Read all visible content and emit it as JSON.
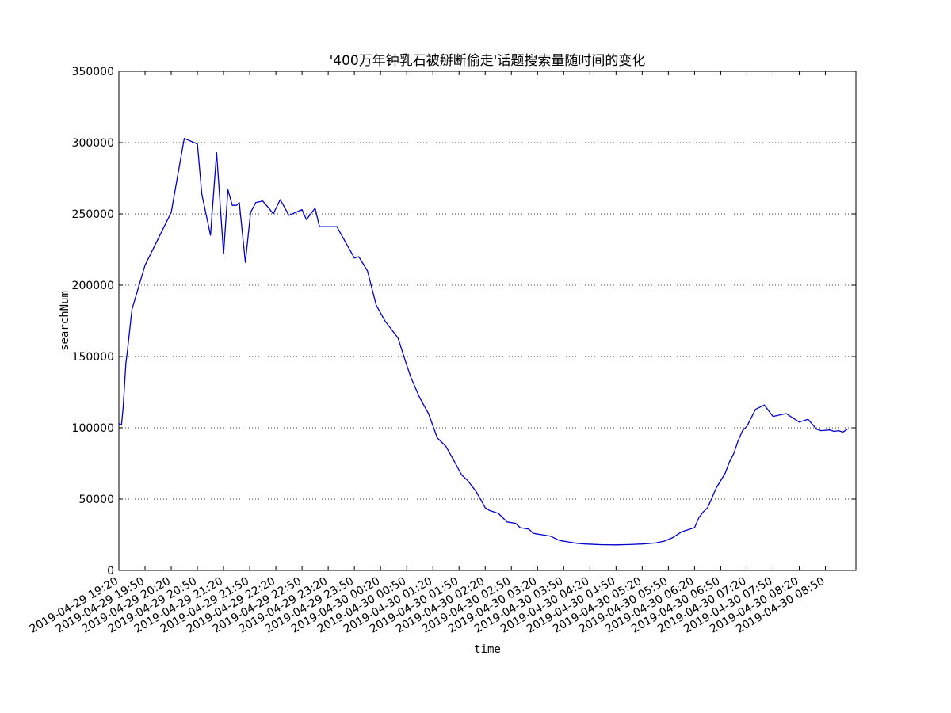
{
  "chart_data": {
    "type": "line",
    "title": "'400万年钟乳石被掰断偷走'话题搜索量随时间的变化",
    "xlabel": "time",
    "ylabel": "searchNum",
    "ylim": [
      0,
      350000
    ],
    "yticks": [
      0,
      50000,
      100000,
      150000,
      200000,
      250000,
      300000,
      350000
    ],
    "ytick_labels": [
      "0",
      "50000",
      "100000",
      "150000",
      "200000",
      "250000",
      "300000",
      "350000"
    ],
    "xlim": [
      "2019-04-29 19:20",
      "2019-04-30 09:25"
    ],
    "xtick_labels": [
      "2019-04-29 19:20",
      "2019-04-29 19:50",
      "2019-04-29 20:20",
      "2019-04-29 20:50",
      "2019-04-29 21:20",
      "2019-04-29 21:50",
      "2019-04-29 22:20",
      "2019-04-29 22:50",
      "2019-04-29 23:20",
      "2019-04-29 23:50",
      "2019-04-30 00:20",
      "2019-04-30 00:50",
      "2019-04-30 01:20",
      "2019-04-30 01:50",
      "2019-04-30 02:20",
      "2019-04-30 02:50",
      "2019-04-30 03:20",
      "2019-04-30 03:50",
      "2019-04-30 04:20",
      "2019-04-30 04:50",
      "2019-04-30 05:20",
      "2019-04-30 05:50",
      "2019-04-30 06:20",
      "2019-04-30 06:50",
      "2019-04-30 07:20",
      "2019-04-30 07:50",
      "2019-04-30 08:20",
      "2019-04-30 08:50"
    ],
    "grid": "y-dotted",
    "line_color": "#0000cc",
    "series": [
      {
        "x": [
          "2019-04-29 19:20",
          "2019-04-29 19:23",
          "2019-04-29 19:25",
          "2019-04-29 19:28",
          "2019-04-29 19:30",
          "2019-04-29 19:35",
          "2019-04-29 19:50",
          "2019-04-29 20:20",
          "2019-04-29 20:35",
          "2019-04-29 20:50",
          "2019-04-29 20:55",
          "2019-04-29 21:05",
          "2019-04-29 21:12",
          "2019-04-29 21:20",
          "2019-04-29 21:25",
          "2019-04-29 21:30",
          "2019-04-29 21:35",
          "2019-04-29 21:38",
          "2019-04-29 21:45",
          "2019-04-29 21:51",
          "2019-04-29 21:57",
          "2019-04-29 22:05",
          "2019-04-29 22:12",
          "2019-04-29 22:17",
          "2019-04-29 22:25",
          "2019-04-29 22:35",
          "2019-04-29 22:50",
          "2019-04-29 22:55",
          "2019-04-29 23:05",
          "2019-04-29 23:10",
          "2019-04-29 23:20",
          "2019-04-29 23:30",
          "2019-04-29 23:50",
          "2019-04-29 23:55",
          "2019-04-30 00:05",
          "2019-04-30 00:15",
          "2019-04-30 00:25",
          "2019-04-30 00:40",
          "2019-04-30 00:50",
          "2019-04-30 00:55",
          "2019-04-30 01:05",
          "2019-04-30 01:15",
          "2019-04-30 01:25",
          "2019-04-30 01:35",
          "2019-04-30 01:45",
          "2019-04-30 01:53",
          "2019-04-30 02:00",
          "2019-04-30 02:10",
          "2019-04-30 02:20",
          "2019-04-30 02:25",
          "2019-04-30 02:35",
          "2019-04-30 02:45",
          "2019-04-30 02:55",
          "2019-04-30 03:00",
          "2019-04-30 03:10",
          "2019-04-30 03:15",
          "2019-04-30 03:25",
          "2019-04-30 03:35",
          "2019-04-30 03:45",
          "2019-04-30 03:55",
          "2019-04-30 04:05",
          "2019-04-30 04:15",
          "2019-04-30 04:25",
          "2019-04-30 04:35",
          "2019-04-30 04:50",
          "2019-04-30 05:05",
          "2019-04-30 05:20",
          "2019-04-30 05:35",
          "2019-04-30 05:45",
          "2019-04-30 05:55",
          "2019-04-30 06:05",
          "2019-04-30 06:20",
          "2019-04-30 06:25",
          "2019-04-30 06:30",
          "2019-04-30 06:35",
          "2019-04-30 06:40",
          "2019-04-30 06:45",
          "2019-04-30 06:55",
          "2019-04-30 07:00",
          "2019-04-30 07:05",
          "2019-04-30 07:10",
          "2019-04-30 07:15",
          "2019-04-30 07:20",
          "2019-04-30 07:30",
          "2019-04-30 07:40",
          "2019-04-30 07:50",
          "2019-04-30 08:05",
          "2019-04-30 08:15",
          "2019-04-30 08:20",
          "2019-04-30 08:30",
          "2019-04-30 08:40",
          "2019-04-30 08:45",
          "2019-04-30 08:55",
          "2019-04-30 09:00",
          "2019-04-30 09:05",
          "2019-04-30 09:10",
          "2019-04-30 09:15"
        ],
        "values": [
          103000,
          102000,
          115000,
          145000,
          155000,
          183000,
          214000,
          251000,
          303000,
          299000,
          264000,
          235000,
          293000,
          222000,
          267000,
          256000,
          256000,
          258000,
          216000,
          251000,
          258000,
          259000,
          254000,
          250000,
          260000,
          249000,
          253000,
          246000,
          254000,
          241000,
          241000,
          241000,
          219000,
          220000,
          210000,
          186000,
          175000,
          163000,
          144000,
          135000,
          121000,
          110000,
          93000,
          87000,
          76000,
          67000,
          63000,
          55000,
          44000,
          42000,
          40000,
          34000,
          33000,
          30000,
          29000,
          26000,
          25000,
          24000,
          21000,
          20000,
          19000,
          18500,
          18200,
          18000,
          17900,
          18100,
          18500,
          19200,
          20500,
          23000,
          27000,
          30000,
          37000,
          41000,
          44000,
          51000,
          58000,
          68000,
          76000,
          82000,
          91000,
          98000,
          101000,
          113000,
          116000,
          108000,
          110000,
          106000,
          104000,
          106000,
          99000,
          98000,
          98500,
          97500,
          98000,
          97000,
          99000
        ]
      }
    ]
  }
}
